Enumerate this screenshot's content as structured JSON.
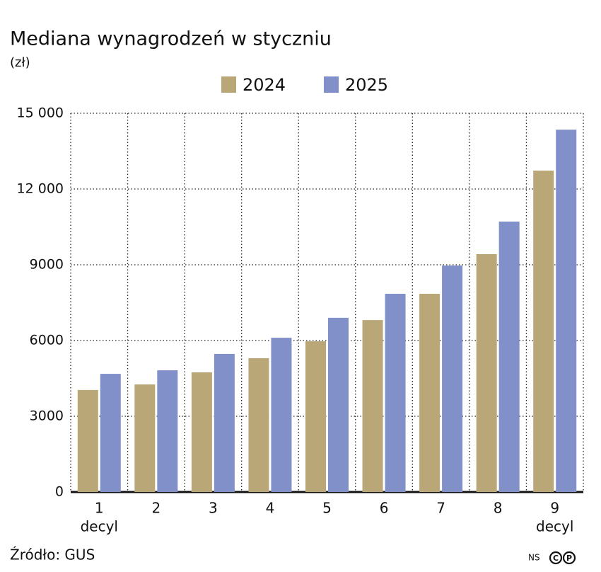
{
  "chart_data": {
    "type": "bar",
    "title": "Mediana wynagrodzeń w styczniu",
    "subtitle": "(zł)",
    "categories": [
      "1",
      "2",
      "3",
      "4",
      "5",
      "6",
      "7",
      "8",
      "9"
    ],
    "x_label": "decyl",
    "series": [
      {
        "name": "2024",
        "color": "#b9a777",
        "values": [
          4040,
          4260,
          4740,
          5300,
          5970,
          6810,
          7850,
          9420,
          12730
        ]
      },
      {
        "name": "2025",
        "color": "#8190c9",
        "values": [
          4680,
          4820,
          5470,
          6110,
          6900,
          7850,
          8970,
          10710,
          14350
        ]
      }
    ],
    "ylim": [
      0,
      15000
    ],
    "yticks": [
      0,
      3000,
      6000,
      9000,
      {
        "value": 12000,
        "label": "12 000"
      },
      {
        "value": 15000,
        "label": "15 000"
      }
    ],
    "grid": true,
    "legend": "top",
    "source": "Źródło: GUS",
    "credit": "NS",
    "icons": [
      "C",
      "P"
    ]
  }
}
